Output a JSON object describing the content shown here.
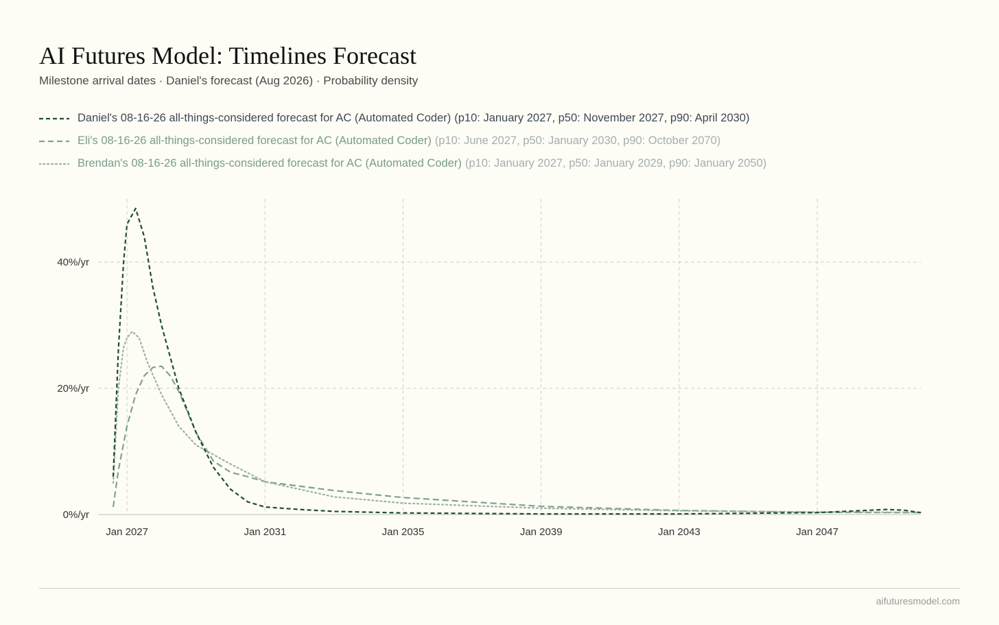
{
  "header": {
    "title": "AI Futures Model: Timelines Forecast",
    "subtitle": "Milestone arrival dates · Daniel's forecast (Aug 2026) · Probability density"
  },
  "footer": {
    "url": "aifuturesmodel.com"
  },
  "chart_data": {
    "type": "line",
    "title": "AI Futures Model: Timelines Forecast",
    "subtitle": "Milestone arrival dates · Daniel's forecast (Aug 2026) · Probability density",
    "xlabel": "",
    "ylabel": "",
    "x_tick_labels": [
      "Jan 2027",
      "Jan 2031",
      "Jan 2035",
      "Jan 2039",
      "Jan 2043",
      "Jan 2047"
    ],
    "x_tick_values": [
      2027,
      2031,
      2035,
      2039,
      2043,
      2047
    ],
    "y_tick_labels": [
      "0%/yr",
      "20%/yr",
      "40%/yr"
    ],
    "y_tick_values": [
      0,
      20,
      40
    ],
    "xlim": [
      2026.6,
      2050.0
    ],
    "ylim": [
      0,
      50
    ],
    "grid": true,
    "legend_position": "top-left",
    "series": [
      {
        "name": "Daniel's 08-16-26 all-things-considered forecast for AC (Automated Coder)",
        "stats": "(p10: January 2027, p50: November 2027, p90: April 2030)",
        "color": "#1e4d33",
        "style": "dashed",
        "points": [
          [
            2026.6,
            6
          ],
          [
            2026.75,
            26
          ],
          [
            2026.9,
            40
          ],
          [
            2027.0,
            46
          ],
          [
            2027.25,
            48.5
          ],
          [
            2027.5,
            44
          ],
          [
            2027.75,
            36
          ],
          [
            2028.0,
            30
          ],
          [
            2028.5,
            20
          ],
          [
            2029.0,
            13
          ],
          [
            2029.5,
            7.5
          ],
          [
            2030.0,
            4
          ],
          [
            2030.5,
            2
          ],
          [
            2031.0,
            1.2
          ],
          [
            2032.0,
            0.8
          ],
          [
            2033.0,
            0.5
          ],
          [
            2035.0,
            0.25
          ],
          [
            2039.0,
            0.1
          ],
          [
            2043.0,
            0.1
          ],
          [
            2047.0,
            0.3
          ],
          [
            2049.0,
            0.8
          ],
          [
            2049.5,
            0.7
          ],
          [
            2050.0,
            0.3
          ]
        ]
      },
      {
        "name": "Eli's 08-16-26 all-things-considered forecast for AC (Automated Coder)",
        "stats": "(p10: June 2027, p50: January 2030, p90: October 2070)",
        "color": "#7fa195",
        "style": "dashed",
        "points": [
          [
            2026.6,
            1.2
          ],
          [
            2026.75,
            7
          ],
          [
            2027.0,
            14
          ],
          [
            2027.25,
            19
          ],
          [
            2027.5,
            22
          ],
          [
            2027.75,
            23.3
          ],
          [
            2028.0,
            23.5
          ],
          [
            2028.25,
            22
          ],
          [
            2028.5,
            19.5
          ],
          [
            2029.0,
            13
          ],
          [
            2029.5,
            8.5
          ],
          [
            2030.0,
            6.7
          ],
          [
            2030.5,
            6
          ],
          [
            2031.0,
            5.2
          ],
          [
            2033.0,
            3.8
          ],
          [
            2035.0,
            2.7
          ],
          [
            2039.0,
            1.3
          ],
          [
            2043.0,
            0.65
          ],
          [
            2047.0,
            0.35
          ],
          [
            2050.0,
            0.3
          ]
        ]
      },
      {
        "name": "Brendan's 08-16-26 all-things-considered forecast for AC (Automated Coder)",
        "stats": "(p10: January 2027, p50: January 2029, p90: January 2050)",
        "color": "#9ab1a7",
        "style": "dotted",
        "points": [
          [
            2026.6,
            5
          ],
          [
            2026.75,
            20
          ],
          [
            2026.9,
            26.5
          ],
          [
            2027.0,
            28
          ],
          [
            2027.15,
            29
          ],
          [
            2027.35,
            28
          ],
          [
            2027.6,
            24
          ],
          [
            2028.0,
            19
          ],
          [
            2028.5,
            14
          ],
          [
            2029.0,
            11
          ],
          [
            2029.5,
            9.5
          ],
          [
            2030.0,
            8
          ],
          [
            2031.0,
            5.2
          ],
          [
            2033.0,
            2.8
          ],
          [
            2035.0,
            1.8
          ],
          [
            2039.0,
            1.0
          ],
          [
            2043.0,
            0.6
          ],
          [
            2047.0,
            0.4
          ],
          [
            2050.0,
            0.35
          ]
        ]
      }
    ]
  }
}
